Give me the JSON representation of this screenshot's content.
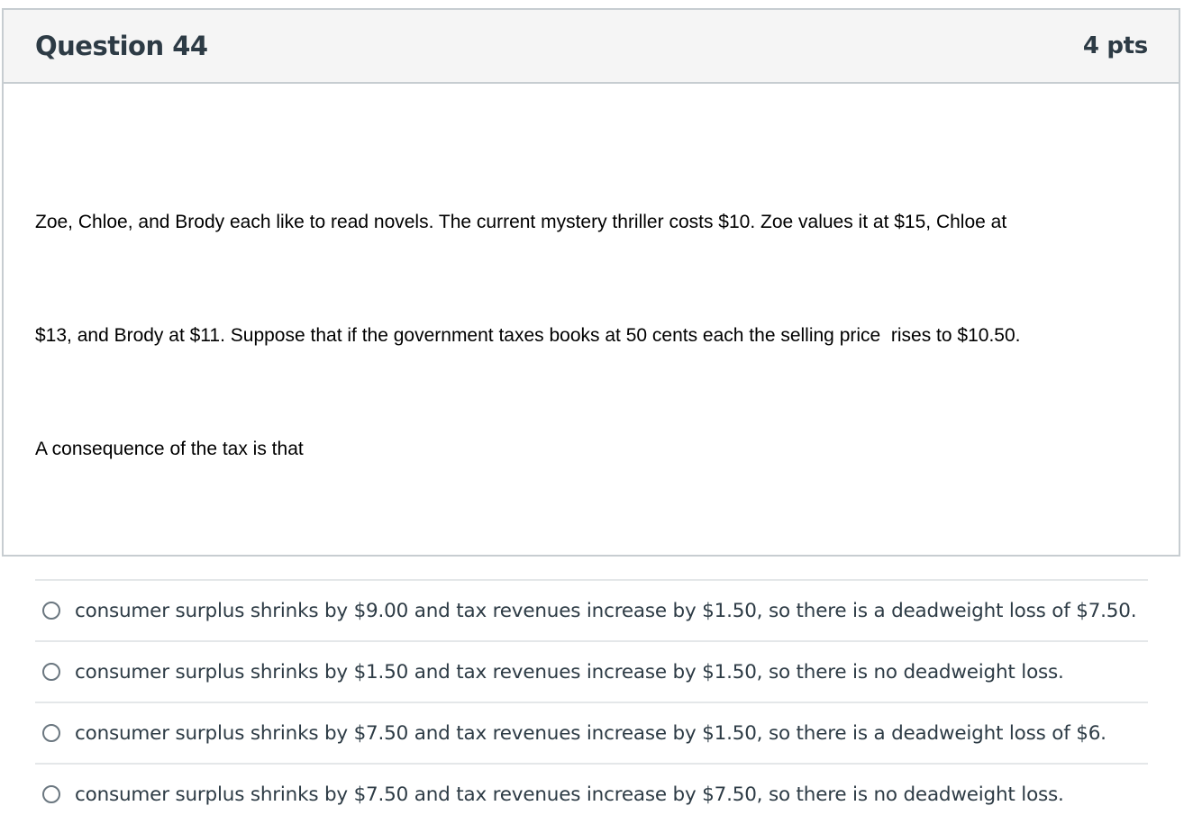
{
  "question": {
    "title": "Question 44",
    "points": "4 pts",
    "text": "Zoe, Chloe, and Brody each like to read novels. The current mystery thriller costs $10. Zoe values it at $15, Chloe at $13, and Brody at $11. Suppose that if the government taxes books at 50 cents each the selling price  rises to $10.50. A consequence of the tax is that",
    "text_lines": [
      "Zoe, Chloe, and Brody each like to read novels. The current mystery thriller costs $10. Zoe values it at $15, Chloe at",
      "$13, and Brody at $11. Suppose that if the government taxes books at 50 cents each the selling price  rises to $10.50.",
      "A consequence of the tax is that"
    ],
    "answers": [
      {
        "label": "consumer surplus shrinks by $9.00 and tax revenues increase by $1.50, so there is a deadweight loss of $7.50."
      },
      {
        "label": "consumer surplus shrinks by $1.50 and tax revenues increase by $1.50, so there is no deadweight loss."
      },
      {
        "label": "consumer surplus shrinks by $7.50 and tax revenues increase by $1.50, so there is a deadweight loss of $6."
      },
      {
        "label": "consumer surplus shrinks by $7.50 and tax revenues increase by $7.50, so there is no deadweight loss."
      }
    ]
  }
}
